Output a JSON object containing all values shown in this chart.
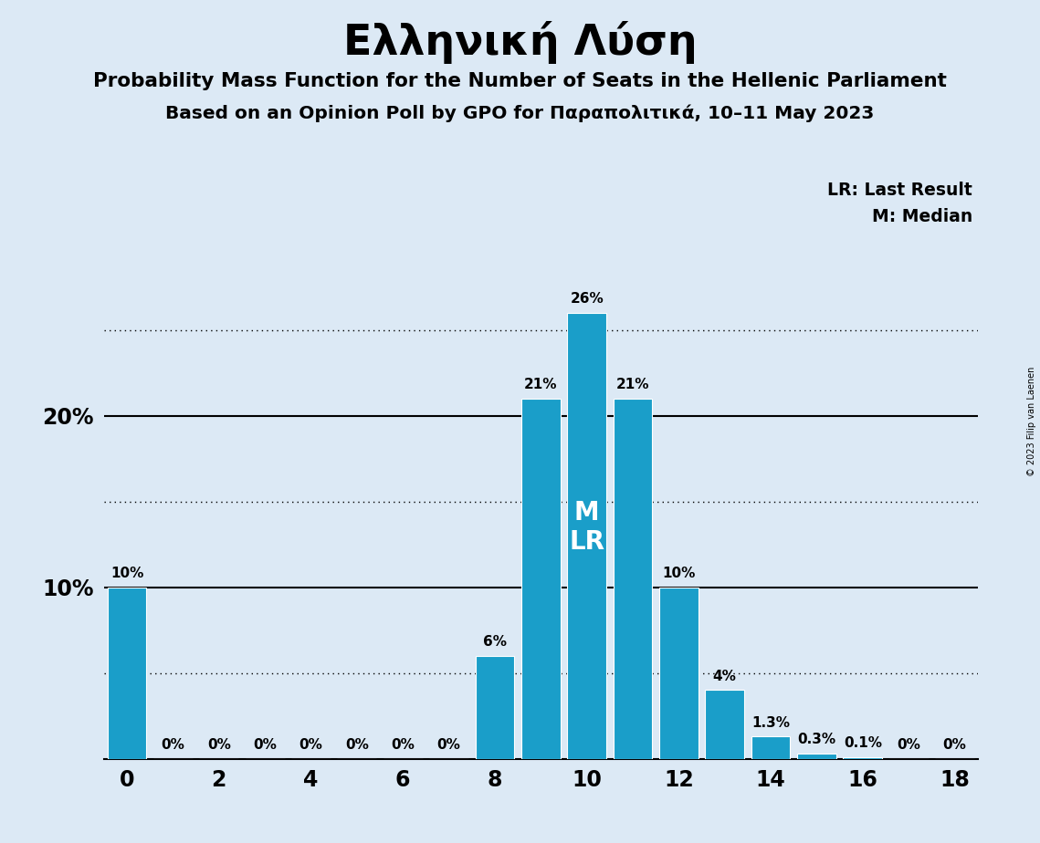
{
  "title": "Ελληνική Λύση",
  "subtitle1": "Probability Mass Function for the Number of Seats in the Hellenic Parliament",
  "subtitle2": "Based on an Opinion Poll by GPO for Παραπολιτικά, 10–11 May 2023",
  "copyright": "© 2023 Filip van Laenen",
  "background_color": "#dce9f5",
  "bar_color": "#1a9ec9",
  "seats": [
    0,
    1,
    2,
    3,
    4,
    5,
    6,
    7,
    8,
    9,
    10,
    11,
    12,
    13,
    14,
    15,
    16,
    17,
    18
  ],
  "probabilities": [
    0.1,
    0.0,
    0.0,
    0.0,
    0.0,
    0.0,
    0.0,
    0.0,
    0.06,
    0.21,
    0.26,
    0.21,
    0.1,
    0.04,
    0.013,
    0.003,
    0.001,
    0.0,
    0.0
  ],
  "labels": [
    "10%",
    "0%",
    "0%",
    "0%",
    "0%",
    "0%",
    "0%",
    "0%",
    "6%",
    "21%",
    "26%",
    "21%",
    "10%",
    "4%",
    "1.3%",
    "0.3%",
    "0.1%",
    "0%",
    "0%"
  ],
  "median_seat": 10,
  "last_result_seat": 10,
  "solid_lines": [
    0.1,
    0.2
  ],
  "dotted_lines": [
    0.05,
    0.15,
    0.25
  ],
  "xlim": [
    -0.5,
    18.5
  ],
  "ylim": [
    0,
    0.295
  ],
  "label_fontsize": 11,
  "tick_fontsize": 17,
  "bar_width": 0.85
}
